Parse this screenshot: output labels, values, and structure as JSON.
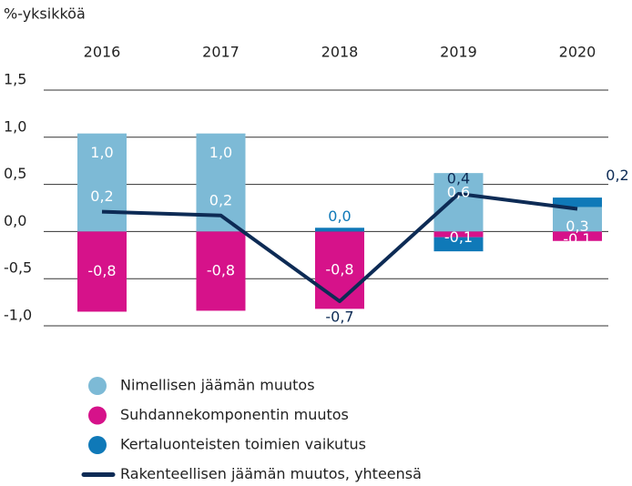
{
  "chart_data": {
    "type": "bar",
    "y_label": "%-yksikköä",
    "categories": [
      "2016",
      "2017",
      "2018",
      "2019",
      "2020"
    ],
    "ylim": [
      -1.0,
      1.5
    ],
    "yticks": [
      {
        "value": 1.5,
        "label": "1,5"
      },
      {
        "value": 1.0,
        "label": "1,0"
      },
      {
        "value": 0.5,
        "label": "0,5"
      },
      {
        "value": 0.0,
        "label": "0,0"
      },
      {
        "value": -0.5,
        "label": "-0,5"
      },
      {
        "value": -1.0,
        "label": "-1,0"
      }
    ],
    "grid": true,
    "stacked": true,
    "series": [
      {
        "name": "Nimellisen jäämän muutos",
        "color": "#7dbad6",
        "values": [
          1.04,
          1.04,
          0.0,
          0.62,
          0.26
        ],
        "value_labels": [
          "1,0",
          "1,0",
          null,
          "0,6",
          "0,3"
        ]
      },
      {
        "name": "Suhdannekomponentin muutos",
        "color": "#d6128a",
        "values": [
          -0.85,
          -0.84,
          -0.82,
          -0.06,
          -0.1
        ],
        "value_labels": [
          "-0,8",
          "-0,8",
          "-0,8",
          "-0,1",
          "-0,1"
        ]
      },
      {
        "name": "Kertaluonteisten toimien vaikutus",
        "color": "#0f79b8",
        "values": [
          0.0,
          0.0,
          0.04,
          -0.15,
          0.1
        ],
        "value_labels": [
          null,
          null,
          "0,0",
          null,
          null
        ]
      },
      {
        "name": "Rakenteellisen jäämän muutos, yhteensä",
        "color": "#0d2b55",
        "type": "line",
        "values": [
          0.21,
          0.17,
          -0.74,
          0.4,
          0.24
        ],
        "value_labels": [
          "0,2",
          "0,2",
          "-0,7",
          "0,4",
          "0,2"
        ]
      }
    ]
  }
}
